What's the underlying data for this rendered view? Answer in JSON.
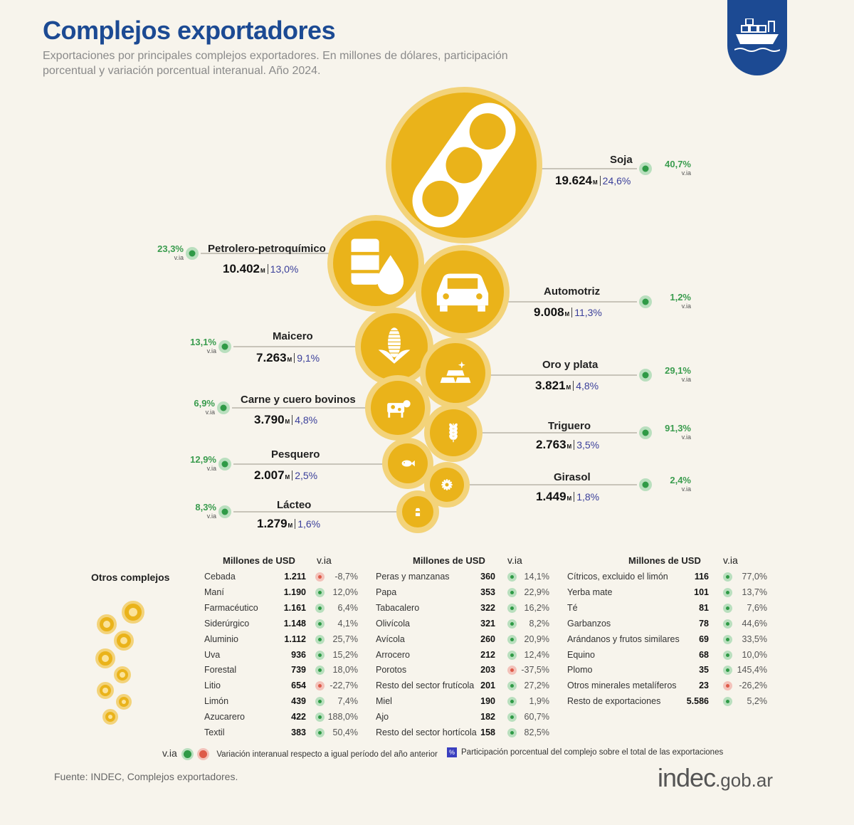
{
  "header": {
    "title": "Complejos exportadores",
    "subtitle": "Exportaciones por principales complejos exportadores. En millones de dólares, participación porcentual y variación porcentual interanual. Año 2024."
  },
  "colors": {
    "brand": "#1c4a93",
    "bubble": "#eab31a",
    "bubble_ring": "#f3d37a",
    "positive": "#2f9a46",
    "negative": "#de5a49",
    "share": "#3a3f9a"
  },
  "chart_data": {
    "type": "bubble",
    "title": "Complejos exportadores",
    "unit_label": "M",
    "via_label": "v.ia",
    "complexes": [
      {
        "name": "Soja",
        "value": 19624,
        "value_label": "19.624",
        "share": "24,6%",
        "via": "40,7%",
        "icon": "soy-pod-icon"
      },
      {
        "name": "Petrolero-petroquímico",
        "value": 10402,
        "value_label": "10.402",
        "share": "13,0%",
        "via": "23,3%",
        "icon": "oil-barrel-icon"
      },
      {
        "name": "Automotriz",
        "value": 9008,
        "value_label": "9.008",
        "share": "11,3%",
        "via": "1,2%",
        "icon": "car-icon"
      },
      {
        "name": "Maicero",
        "value": 7263,
        "value_label": "7.263",
        "share": "9,1%",
        "via": "13,1%",
        "icon": "corn-icon"
      },
      {
        "name": "Oro y plata",
        "value": 3821,
        "value_label": "3.821",
        "share": "4,8%",
        "via": "29,1%",
        "icon": "gold-bars-icon"
      },
      {
        "name": "Carne y cuero bovinos",
        "value": 3790,
        "value_label": "3.790",
        "share": "4,8%",
        "via": "6,9%",
        "icon": "cow-icon"
      },
      {
        "name": "Triguero",
        "value": 2763,
        "value_label": "2.763",
        "share": "3,5%",
        "via": "91,3%",
        "icon": "wheat-icon"
      },
      {
        "name": "Pesquero",
        "value": 2007,
        "value_label": "2.007",
        "share": "2,5%",
        "via": "12,9%",
        "icon": "fish-icon"
      },
      {
        "name": "Girasol",
        "value": 1449,
        "value_label": "1.449",
        "share": "1,8%",
        "via": "2,4%",
        "icon": "sunflower-icon"
      },
      {
        "name": "Lácteo",
        "value": 1279,
        "value_label": "1.279",
        "share": "1,6%",
        "via": "8,3%",
        "icon": "milk-icon"
      }
    ]
  },
  "others": {
    "title": "Otros complejos",
    "col_header": "Millones de USD",
    "via_header": "v.ia",
    "columns": [
      [
        {
          "name": "Cebada",
          "value": "1.211",
          "via": "-8,7%",
          "sign": "neg"
        },
        {
          "name": "Maní",
          "value": "1.190",
          "via": "12,0%",
          "sign": "pos"
        },
        {
          "name": "Farmacéutico",
          "value": "1.161",
          "via": "6,4%",
          "sign": "pos"
        },
        {
          "name": "Siderúrgico",
          "value": "1.148",
          "via": "4,1%",
          "sign": "pos"
        },
        {
          "name": "Aluminio",
          "value": "1.112",
          "via": "25,7%",
          "sign": "pos"
        },
        {
          "name": "Uva",
          "value": "936",
          "via": "15,2%",
          "sign": "pos"
        },
        {
          "name": "Forestal",
          "value": "739",
          "via": "18,0%",
          "sign": "pos"
        },
        {
          "name": "Litio",
          "value": "654",
          "via": "-22,7%",
          "sign": "neg"
        },
        {
          "name": "Limón",
          "value": "439",
          "via": "7,4%",
          "sign": "pos"
        },
        {
          "name": "Azucarero",
          "value": "422",
          "via": "188,0%",
          "sign": "pos"
        },
        {
          "name": "Textil",
          "value": "383",
          "via": "50,4%",
          "sign": "pos"
        }
      ],
      [
        {
          "name": "Peras y manzanas",
          "value": "360",
          "via": "14,1%",
          "sign": "pos"
        },
        {
          "name": "Papa",
          "value": "353",
          "via": "22,9%",
          "sign": "pos"
        },
        {
          "name": "Tabacalero",
          "value": "322",
          "via": "16,2%",
          "sign": "pos"
        },
        {
          "name": "Olivícola",
          "value": "321",
          "via": "8,2%",
          "sign": "pos"
        },
        {
          "name": "Avícola",
          "value": "260",
          "via": "20,9%",
          "sign": "pos"
        },
        {
          "name": "Arrocero",
          "value": "212",
          "via": "12,4%",
          "sign": "pos"
        },
        {
          "name": "Porotos",
          "value": "203",
          "via": "-37,5%",
          "sign": "neg"
        },
        {
          "name": "Resto del sector frutícola",
          "value": "201",
          "via": "27,2%",
          "sign": "pos"
        },
        {
          "name": "Miel",
          "value": "190",
          "via": "1,9%",
          "sign": "pos"
        },
        {
          "name": "Ajo",
          "value": "182",
          "via": "60,7%",
          "sign": "pos"
        },
        {
          "name": "Resto del sector hortícola",
          "value": "158",
          "via": "82,5%",
          "sign": "pos"
        }
      ],
      [
        {
          "name": "Cítricos, excluido el limón",
          "value": "116",
          "via": "77,0%",
          "sign": "pos"
        },
        {
          "name": "Yerba mate",
          "value": "101",
          "via": "13,7%",
          "sign": "pos"
        },
        {
          "name": "Té",
          "value": "81",
          "via": "7,6%",
          "sign": "pos"
        },
        {
          "name": "Garbanzos",
          "value": "78",
          "via": "44,6%",
          "sign": "pos"
        },
        {
          "name": "Arándanos y frutos similares",
          "value": "69",
          "via": "33,5%",
          "sign": "pos"
        },
        {
          "name": "Equino",
          "value": "68",
          "via": "10,0%",
          "sign": "pos"
        },
        {
          "name": "Plomo",
          "value": "35",
          "via": "145,4%",
          "sign": "pos"
        },
        {
          "name": "Otros minerales metalíferos",
          "value": "23",
          "via": "-26,2%",
          "sign": "neg"
        },
        {
          "name": "Resto de exportaciones",
          "value": "5.586",
          "via": "5,2%",
          "sign": "pos"
        }
      ]
    ]
  },
  "legend": {
    "via_label": "v.ia",
    "via_text": "Variación interanual respecto a igual período del año anterior",
    "share_symbol": "%",
    "share_text": "Participación porcentual del complejo sobre el total de las exportaciones"
  },
  "footer": {
    "source": "Fuente: INDEC, Complejos exportadores.",
    "logo_main": "indec",
    "logo_domain": ".gob.ar"
  }
}
